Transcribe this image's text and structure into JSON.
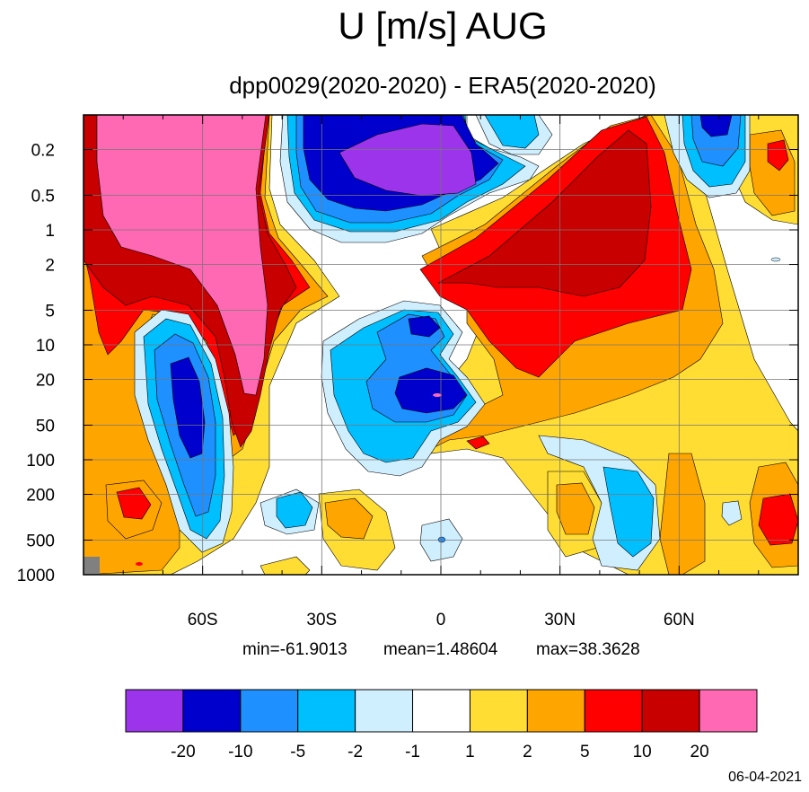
{
  "chart_data": {
    "type": "heatmap",
    "subtype": "filled-contour",
    "title": "U [m/s] AUG",
    "subtitle": "dpp0029(2020-2020) - ERA5(2020-2020)",
    "xlabel": "",
    "ylabel": "",
    "x_axis": {
      "range": [
        -90,
        90
      ],
      "ticks": [
        -60,
        -30,
        0,
        30,
        60
      ],
      "tick_labels": [
        "60S",
        "30S",
        "0",
        "30N",
        "60N"
      ]
    },
    "y_axis": {
      "scale": "log",
      "inverted": true,
      "range": [
        0.1,
        1000
      ],
      "ticks": [
        0.2,
        0.5,
        1,
        2,
        5,
        10,
        20,
        50,
        100,
        200,
        500,
        1000
      ],
      "tick_labels": [
        "0.2",
        "0.5",
        "1",
        "2",
        "5",
        "10",
        "20",
        "50",
        "100",
        "200",
        "500",
        "1000"
      ]
    },
    "grid": true,
    "stats": {
      "min_label": "min=-61.9013",
      "mean_label": "mean=1.48604",
      "max_label": "max=38.3628"
    },
    "colorbar": {
      "levels": [
        -20,
        -10,
        -5,
        -2,
        -1,
        1,
        2,
        5,
        10,
        20
      ],
      "level_labels": [
        "-20",
        "-10",
        "-5",
        "-2",
        "-1",
        "1",
        "2",
        "5",
        "10",
        "20"
      ],
      "colors": [
        "#9b34eb",
        "#0000cc",
        "#1e90ff",
        "#00bfff",
        "#cfefff",
        "#ffffff",
        "#ffdd33",
        "#ffa500",
        "#ff0000",
        "#c80000",
        "#ff69b4"
      ]
    }
  },
  "date_label": "06-04-2021"
}
